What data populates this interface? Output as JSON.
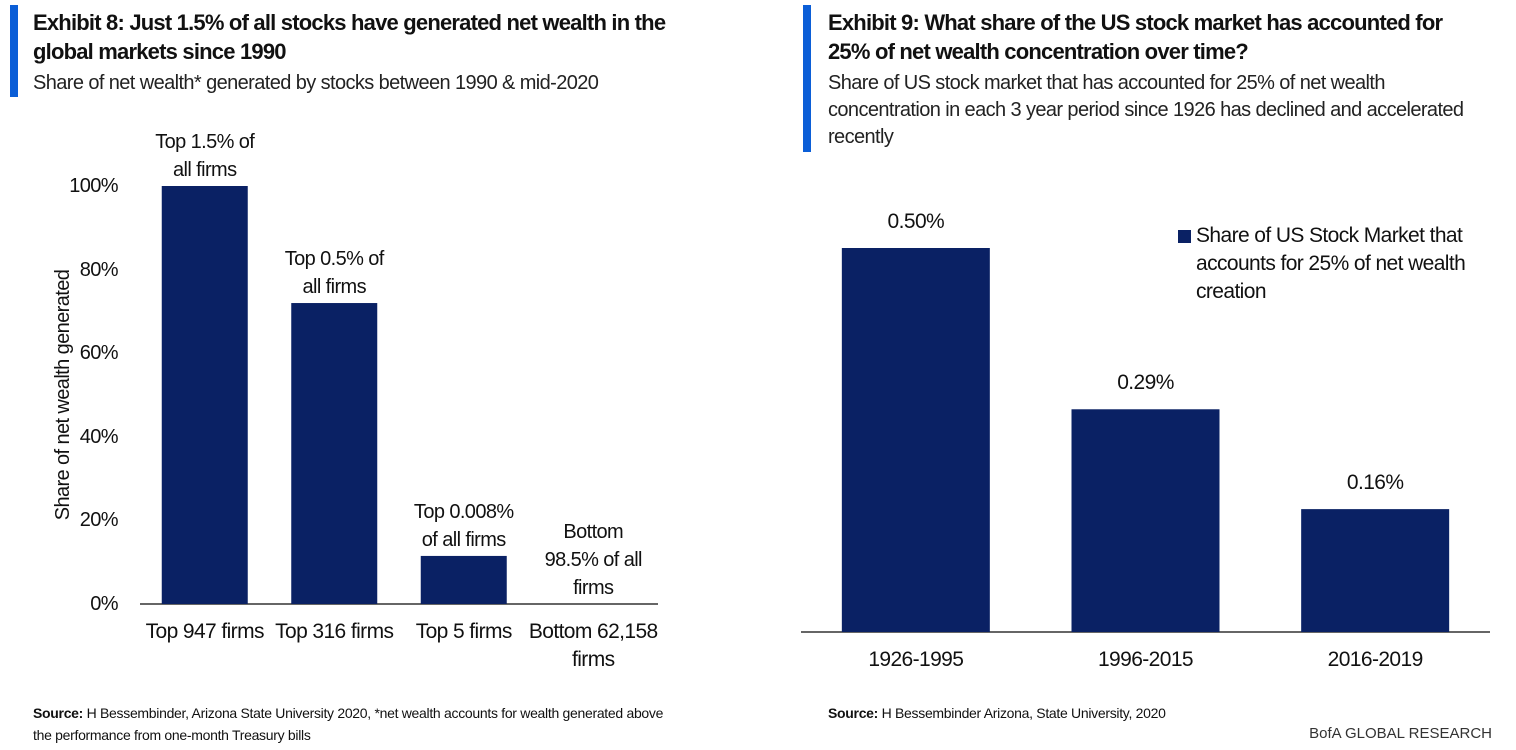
{
  "chart_data": [
    {
      "type": "bar",
      "title": "Exhibit 8: Just 1.5% of all stocks have generated net wealth in the global markets since 1990",
      "subtitle": "Share of net wealth* generated by stocks between 1990 & mid-2020",
      "y_label": "Share of net wealth generated",
      "categories": [
        "Top 947 firms",
        "Top 316 firms",
        "Top 5 firms",
        "Bottom 62,158 firms"
      ],
      "values": [
        100,
        72,
        11.5,
        0
      ],
      "bar_labels": [
        "Top 1.5% of all firms",
        "Top 0.5% of all firms",
        "Top 0.008% of all firms",
        "Bottom 98.5% of all firms"
      ],
      "color": "#0a2164",
      "ylim": [
        0,
        100
      ],
      "yticks": [
        {
          "value": 0,
          "label": "0%"
        },
        {
          "value": 20,
          "label": "20%"
        },
        {
          "value": 40,
          "label": "40%"
        },
        {
          "value": 60,
          "label": "60%"
        },
        {
          "value": 80,
          "label": "80%"
        },
        {
          "value": 100,
          "label": "100%"
        }
      ],
      "grid": false,
      "source_label": "Source:",
      "source": "H Bessembinder,  Arizona State University 2020, *net wealth accounts  for wealth generated above the performance from one-month Treasury bills"
    },
    {
      "type": "bar",
      "title": "Exhibit 9: What share of the US stock market has accounted for 25% of net wealth concentration over time?",
      "subtitle": "Share of US stock market that has accounted for 25% of net wealth concentration in each 3 year period since 1926 has declined and accelerated recently",
      "categories": [
        "1926-1995",
        "1996-2015",
        "2016-2019"
      ],
      "series": [
        {
          "name": "Share of US Stock Market that accounts for 25% of net wealth creation",
          "color": "#0a2164",
          "values": [
            0.5,
            0.29,
            0.16
          ],
          "value_labels": [
            "0.50%",
            "0.29%",
            "0.16%"
          ]
        }
      ],
      "legend": "top-right",
      "source_label": "Source:",
      "source": "H Bessembinder  Arizona, State University, 2020"
    }
  ],
  "footer": "BofA GLOBAL RESEARCH"
}
